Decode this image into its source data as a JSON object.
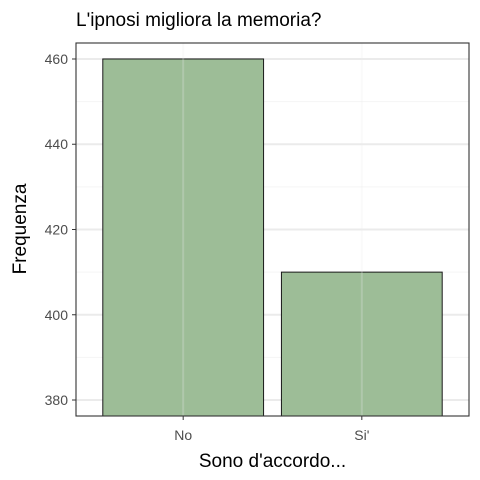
{
  "chart_data": {
    "type": "bar",
    "title": "L'ipnosi migliora la memoria?",
    "xlabel": "Sono d'accordo...",
    "ylabel": "Frequenza",
    "categories": [
      "No",
      "Si'"
    ],
    "values": [
      460,
      410
    ],
    "ylim": [
      376.25,
      463.75
    ],
    "yticks": [
      380,
      400,
      420,
      440,
      460
    ],
    "grid": true,
    "bar_color": "#9dbd97",
    "bar_edge_color": "#1a1a1a",
    "panel_border_color": "#333333",
    "grid_major_color": "#ebebeb",
    "grid_minor_color": "#f5f5f5"
  }
}
